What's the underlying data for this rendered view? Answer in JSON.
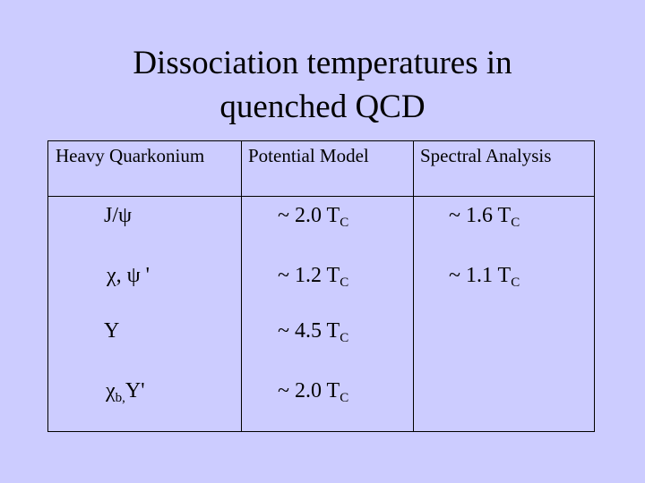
{
  "title": {
    "line1": "Dissociation temperatures in",
    "line2": "quenched QCD"
  },
  "table": {
    "header": [
      "Heavy Quarkonium",
      "Potential Model",
      "Spectral Analysis"
    ],
    "rows": [
      [
        {
          "text": "J/ψ"
        },
        {
          "text": "~ 2.0 T",
          "sub": "C"
        },
        {
          "text": "~ 1.6 T",
          "sub": "C"
        }
      ],
      [
        {
          "text": "χ, ψ '"
        },
        {
          "text": "~ 1.2 T",
          "sub": "C"
        },
        {
          "text": "~ 1.1 T",
          "sub": "C"
        }
      ],
      [
        {
          "text": "Υ"
        },
        {
          "text": "~ 4.5 T",
          "sub": "C"
        }
      ],
      [
        {
          "text": "χ",
          "sub": "b,",
          "after": "Υ'"
        },
        {
          "text": "~ 2.0 T",
          "sub": "C"
        }
      ]
    ]
  }
}
